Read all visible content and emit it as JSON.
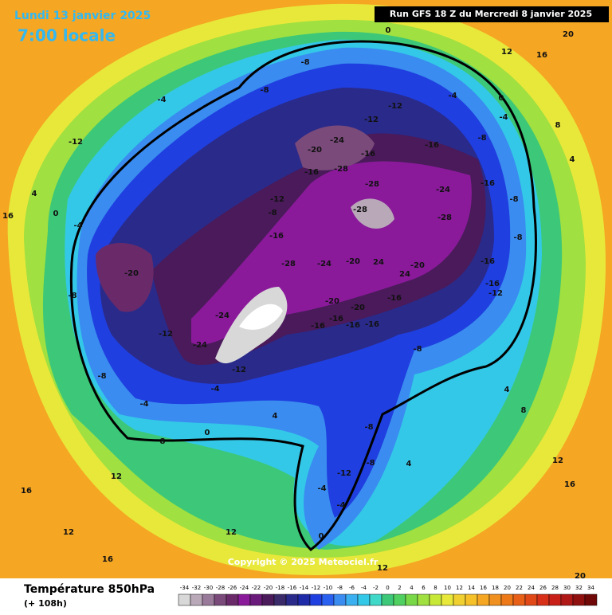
{
  "header": {
    "date": "Lundi 13 janvier 2025",
    "time": "7:00 locale",
    "run": "Run GFS 18 Z du Mercredi 8 janvier 2025"
  },
  "map": {
    "copyright": "Copyright © 2025 Meteociel.fr",
    "contour_labels": [
      "0",
      "-8",
      "-8",
      "-12",
      "-12",
      "-4",
      "0",
      "-4",
      "-8",
      "-16",
      "-24",
      "-20",
      "-16",
      "-28",
      "-16",
      "-28",
      "-24",
      "-16",
      "-28",
      "-28",
      "-8",
      "-8",
      "-12",
      "-16",
      "-8",
      "-20",
      "-28",
      "-24",
      "-20",
      "24",
      "-20",
      "24",
      "-16",
      "-16",
      "-12",
      "-20",
      "-20",
      "-16",
      "-16",
      "-16",
      "-16",
      "-16",
      "-24",
      "-24",
      "-12",
      "-8",
      "-8",
      "-4",
      "0",
      "4",
      "-8",
      "-8",
      "-12",
      "-4",
      "-4",
      "0",
      "4",
      "-8",
      "4",
      "8",
      "12",
      "16",
      "20",
      "16",
      "12",
      "8",
      "4",
      "-4",
      "-12",
      "4",
      "0",
      "-4",
      "16",
      "16",
      "12",
      "12",
      "16",
      "20",
      "12",
      "8",
      "-4",
      "12",
      "-12"
    ]
  },
  "legend": {
    "title": "Température 850hPa",
    "subtitle": "(+ 108h)",
    "ticks": [
      -34,
      -32,
      -30,
      -28,
      -26,
      -24,
      -22,
      -20,
      -18,
      -16,
      -14,
      -12,
      -10,
      -8,
      -6,
      -4,
      -2,
      0,
      2,
      4,
      6,
      8,
      10,
      12,
      14,
      16,
      18,
      20,
      22,
      24,
      26,
      28,
      30,
      32,
      34
    ],
    "colors": [
      "#d8d8d8",
      "#b8a8b8",
      "#9a7a9a",
      "#7a4a7a",
      "#6a2a6a",
      "#8a1a9a",
      "#6a1a7a",
      "#4a1a5a",
      "#3a2a6a",
      "#2a2a8a",
      "#1e2aa8",
      "#1f3fe0",
      "#2a60f0",
      "#3a8cf0",
      "#3ab0f0",
      "#33c8e8",
      "#40d8c8",
      "#3cc878",
      "#50d060",
      "#78d848",
      "#a0e040",
      "#c8e838",
      "#e8e83a",
      "#f0d030",
      "#f5c028",
      "#f5a623",
      "#f09020",
      "#ec7818",
      "#e86018",
      "#e04818",
      "#d83018",
      "#c82018",
      "#b01818",
      "#901010",
      "#700808"
    ]
  }
}
